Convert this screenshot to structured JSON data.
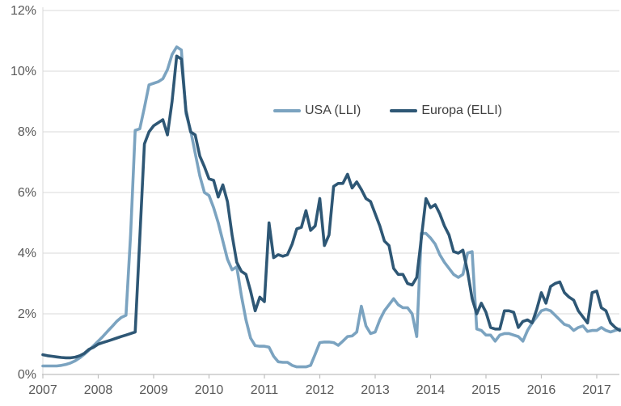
{
  "chart_data": {
    "type": "line",
    "title": "",
    "xlabel": "",
    "ylabel": "",
    "x_start_year": 2007,
    "x_step": "monthly",
    "x_end": "2017-06",
    "x_tick_labels": [
      "2007",
      "2008",
      "2009",
      "2010",
      "2011",
      "2012",
      "2013",
      "2014",
      "2015",
      "2016",
      "2017"
    ],
    "y_tick_labels": [
      "0%",
      "2%",
      "4%",
      "6%",
      "8%",
      "10%",
      "12%"
    ],
    "ylim": [
      0,
      12
    ],
    "grid": "horizontal",
    "legend_position": "inside-top-center",
    "colors": {
      "usa_line": "#7ba3c0",
      "europa_line": "#2e5775",
      "gridline": "#d9d9d9",
      "axis_line": "#bfbfbf",
      "tick_text": "#595959",
      "legend_text": "#404040"
    },
    "series": [
      {
        "name": "USA (LLI)",
        "color": "#7ba3c0",
        "values": [
          0.28,
          0.28,
          0.28,
          0.28,
          0.3,
          0.33,
          0.38,
          0.45,
          0.55,
          0.67,
          0.8,
          0.95,
          1.1,
          1.25,
          1.42,
          1.58,
          1.75,
          1.88,
          1.95,
          4.6,
          8.05,
          8.1,
          8.8,
          9.55,
          9.6,
          9.65,
          9.75,
          10.05,
          10.55,
          10.8,
          10.7,
          8.6,
          8.05,
          7.3,
          6.55,
          6.0,
          5.9,
          5.5,
          5.0,
          4.4,
          3.8,
          3.45,
          3.55,
          2.6,
          1.8,
          1.2,
          0.95,
          0.93,
          0.93,
          0.9,
          0.6,
          0.42,
          0.4,
          0.4,
          0.3,
          0.25,
          0.25,
          0.25,
          0.3,
          0.67,
          1.05,
          1.07,
          1.07,
          1.05,
          0.96,
          1.1,
          1.25,
          1.27,
          1.4,
          2.25,
          1.6,
          1.35,
          1.4,
          1.8,
          2.1,
          2.3,
          2.5,
          2.3,
          2.2,
          2.2,
          2.0,
          1.25,
          4.65,
          4.65,
          4.5,
          4.3,
          3.95,
          3.7,
          3.5,
          3.3,
          3.2,
          3.3,
          4.0,
          4.05,
          1.5,
          1.45,
          1.3,
          1.3,
          1.1,
          1.3,
          1.35,
          1.35,
          1.3,
          1.25,
          1.1,
          1.45,
          1.7,
          1.9,
          2.1,
          2.15,
          2.1,
          1.95,
          1.8,
          1.65,
          1.6,
          1.45,
          1.55,
          1.6,
          1.42,
          1.45,
          1.45,
          1.55,
          1.45,
          1.4,
          1.45,
          1.5
        ]
      },
      {
        "name": "Europa (ELLI)",
        "color": "#2e5775",
        "values": [
          0.65,
          0.62,
          0.6,
          0.58,
          0.56,
          0.55,
          0.55,
          0.57,
          0.62,
          0.7,
          0.83,
          0.9,
          1.0,
          1.05,
          1.1,
          1.15,
          1.2,
          1.25,
          1.3,
          1.35,
          1.4,
          4.5,
          7.6,
          8.0,
          8.2,
          8.3,
          8.4,
          7.9,
          9.0,
          10.5,
          10.4,
          8.7,
          8.0,
          7.9,
          7.2,
          6.85,
          6.45,
          6.4,
          5.85,
          6.25,
          5.7,
          4.6,
          3.7,
          3.4,
          3.3,
          2.75,
          2.1,
          2.55,
          2.4,
          5.0,
          3.85,
          3.95,
          3.9,
          3.95,
          4.3,
          4.8,
          4.85,
          5.4,
          4.75,
          4.9,
          5.8,
          4.25,
          4.6,
          6.2,
          6.3,
          6.3,
          6.6,
          6.15,
          6.35,
          6.1,
          5.8,
          5.7,
          5.3,
          4.9,
          4.4,
          4.25,
          3.5,
          3.3,
          3.3,
          3.0,
          2.95,
          3.2,
          4.5,
          5.8,
          5.5,
          5.6,
          5.3,
          4.9,
          4.6,
          4.05,
          4.0,
          4.1,
          3.4,
          2.5,
          2.0,
          2.35,
          2.05,
          1.55,
          1.5,
          1.5,
          2.1,
          2.1,
          2.05,
          1.55,
          1.75,
          1.8,
          1.7,
          2.15,
          2.7,
          2.35,
          2.9,
          3.0,
          3.05,
          2.7,
          2.55,
          2.45,
          2.1,
          1.9,
          1.7,
          2.7,
          2.75,
          2.2,
          2.1,
          1.7,
          1.55,
          1.45
        ]
      }
    ]
  },
  "legend": {
    "usa_label": "USA (LLI)",
    "europa_label": "Europa (ELLI)"
  }
}
